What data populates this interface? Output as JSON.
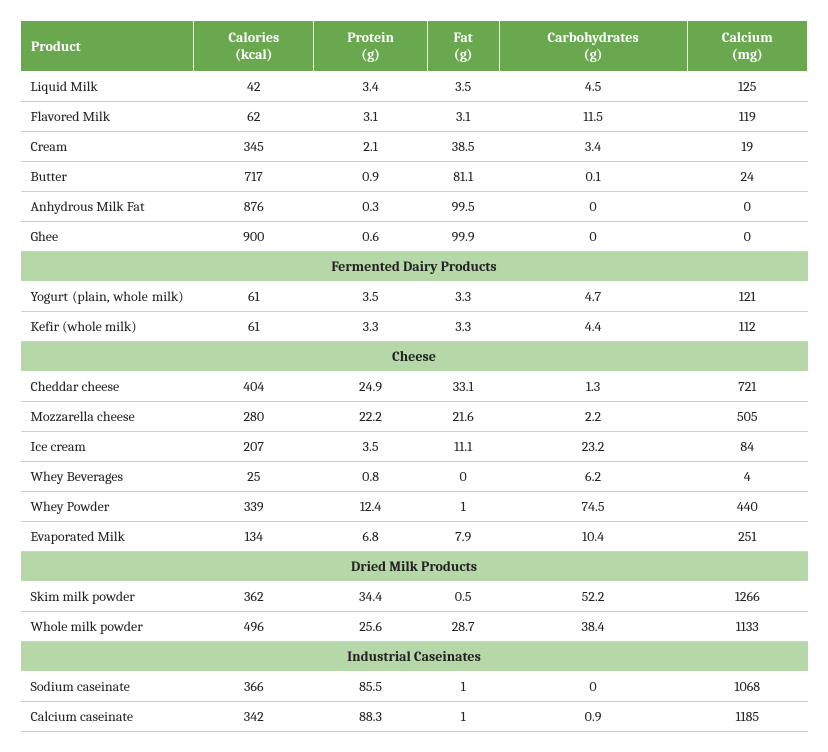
{
  "table": {
    "header_bg": "#6aa84f",
    "header_fg": "#ffffff",
    "section_bg": "#b6d7a8",
    "border_color": "#d0d0c0",
    "columns": [
      {
        "label": "Product",
        "align": "left"
      },
      {
        "label_line1": "Calories",
        "label_line2": "(kcal)",
        "align": "center"
      },
      {
        "label_line1": "Protein",
        "label_line2": "(g)",
        "align": "center"
      },
      {
        "label_line1": "Fat",
        "label_line2": "(g)",
        "align": "center"
      },
      {
        "label_line1": "Carbohydrates",
        "label_line2": "(g)",
        "align": "center"
      },
      {
        "label_line1": "Calcium",
        "label_line2": "(mg)",
        "align": "center"
      }
    ],
    "groups": [
      {
        "rows": [
          {
            "product": "Liquid Milk",
            "calories": "42",
            "protein": "3.4",
            "fat": "3.5",
            "carbs": "4.5",
            "calcium": "125"
          },
          {
            "product": "Flavored Milk",
            "calories": "62",
            "protein": "3.1",
            "fat": "3.1",
            "carbs": "11.5",
            "calcium": "119"
          },
          {
            "product": "Cream",
            "calories": "345",
            "protein": "2.1",
            "fat": "38.5",
            "carbs": "3.4",
            "calcium": "19"
          },
          {
            "product": "Butter",
            "calories": "717",
            "protein": "0.9",
            "fat": "81.1",
            "carbs": "0.1",
            "calcium": "24"
          },
          {
            "product": "Anhydrous Milk Fat",
            "calories": "876",
            "protein": "0.3",
            "fat": "99.5",
            "carbs": "0",
            "calcium": "0"
          },
          {
            "product": "Ghee",
            "calories": "900",
            "protein": "0.6",
            "fat": "99.9",
            "carbs": "0",
            "calcium": "0"
          }
        ]
      },
      {
        "title": "Fermented Dairy Products",
        "rows": [
          {
            "product": "Yogurt (plain, whole milk)",
            "justify": true,
            "calories": "61",
            "protein": "3.5",
            "fat": "3.3",
            "carbs": "4.7",
            "calcium": "121"
          },
          {
            "product": "Kefir (whole milk)",
            "calories": "61",
            "protein": "3.3",
            "fat": "3.3",
            "carbs": "4.4",
            "calcium": "112"
          }
        ]
      },
      {
        "title": "Cheese",
        "rows": [
          {
            "product": "Cheddar cheese",
            "calories": "404",
            "protein": "24.9",
            "fat": "33.1",
            "carbs": "1.3",
            "calcium": "721"
          },
          {
            "product": "Mozzarella cheese",
            "calories": "280",
            "protein": "22.2",
            "fat": "21.6",
            "carbs": "2.2",
            "calcium": "505"
          },
          {
            "product": "Ice cream",
            "calories": "207",
            "protein": "3.5",
            "fat": "11.1",
            "carbs": "23.2",
            "calcium": "84"
          },
          {
            "product": "Whey Beverages",
            "calories": "25",
            "protein": "0.8",
            "fat": "0",
            "carbs": "6.2",
            "calcium": "4"
          },
          {
            "product": "Whey Powder",
            "calories": "339",
            "protein": "12.4",
            "fat": "1",
            "carbs": "74.5",
            "calcium": "440"
          },
          {
            "product": "Evaporated Milk",
            "calories": "134",
            "protein": "6.8",
            "fat": "7.9",
            "carbs": "10.4",
            "calcium": "251"
          }
        ]
      },
      {
        "title": "Dried Milk Products",
        "rows": [
          {
            "product": "Skim milk powder",
            "calories": "362",
            "protein": "34.4",
            "fat": "0.5",
            "carbs": "52.2",
            "calcium": "1266"
          },
          {
            "product": "Whole milk powder",
            "calories": "496",
            "protein": "25.6",
            "fat": "28.7",
            "carbs": "38.4",
            "calcium": "1133"
          }
        ]
      },
      {
        "title": "Industrial Caseinates",
        "rows": [
          {
            "product": "Sodium caseinate",
            "calories": "366",
            "protein": "85.5",
            "fat": "1",
            "carbs": "0",
            "calcium": "1068"
          },
          {
            "product": "Calcium caseinate",
            "calories": "342",
            "protein": "88.3",
            "fat": "1",
            "carbs": "0.9",
            "calcium": "1185"
          }
        ]
      }
    ]
  }
}
